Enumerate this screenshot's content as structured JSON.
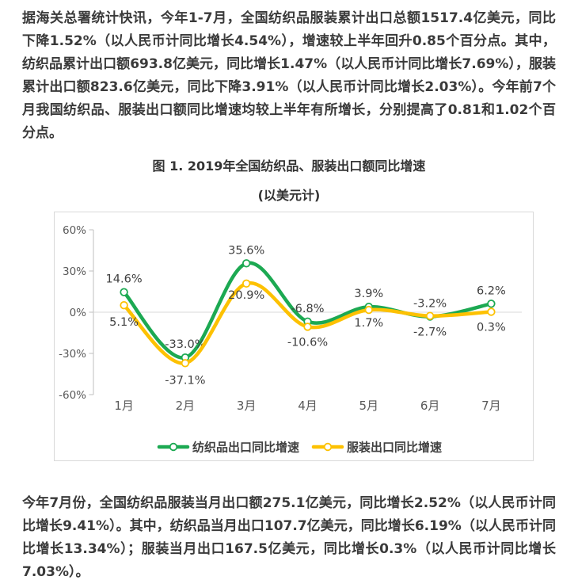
{
  "paragraphs": {
    "p1": "据海关总署统计快讯，今年1-7月，全国纺织品服装累计出口总额1517.4亿美元，同比下降1.52%（以人民币计同比增长4.54%），增速较上半年回升0.85个百分点。其中，纺织品累计出口额693.8亿美元，同比增长1.47%（以人民币计同比增长7.69%），服装累计出口额823.6亿美元，同比下降3.91%（以人民币计同比增长2.03%）。今年前7个月我国纺织品、服装出口额同比增速均较上半年有所增长，分别提高了0.81和1.02个百分点。",
    "p2": "今年7月份，全国纺织品服装当月出口额275.1亿美元，同比增长2.52%（以人民币计同比增长9.41%）。其中，纺织品当月出口107.7亿美元，同比增长6.19%（以人民币计同比增长13.34%）；服装当月出口167.5亿美元，同比增长0.3%（以人民币计同比增长7.03%）。"
  },
  "figure": {
    "title": "图 1. 2019年全国纺织品、服装出口额同比增速",
    "subtitle": "(以美元计)"
  },
  "chart_data": {
    "type": "line",
    "title": "图 1. 2019年全国纺织品、服装出口额同比增速",
    "subtitle": "(以美元计)",
    "categories": [
      "1月",
      "2月",
      "3月",
      "4月",
      "5月",
      "6月",
      "7月"
    ],
    "series": [
      {
        "name": "纺织品出口同比增速",
        "color": "#1CA952",
        "values": [
          14.6,
          -33.0,
          35.6,
          -6.8,
          3.9,
          -3.2,
          6.2
        ],
        "labels": [
          "14.6%",
          "-33.0%",
          "35.6%",
          "-6.8%",
          "3.9%",
          "-3.2%",
          "6.2%"
        ]
      },
      {
        "name": "服装出口同比增速",
        "color": "#FDC101",
        "values": [
          5.1,
          -37.1,
          20.9,
          -10.6,
          1.7,
          -2.7,
          0.3
        ],
        "labels": [
          "5.1%",
          "-37.1%",
          "20.9%",
          "-10.6%",
          "1.7%",
          "-2.7%",
          "0.3%"
        ]
      }
    ],
    "ylim": [
      -60,
      60
    ],
    "yticks": [
      60,
      30,
      0,
      -30,
      -60
    ],
    "ytick_labels": [
      "60%",
      "30%",
      "0%",
      "-30%",
      "-60%"
    ],
    "grid": "zero-line-only",
    "legend_position": "bottom",
    "smooth": true,
    "colors": {
      "axis": "#BFBFBF",
      "zero_line": "#D9D9D9",
      "tick_text": "#595959",
      "data_label": "#3F3F3F",
      "legend_text": "#404040",
      "border": "#D9D9D9"
    }
  }
}
